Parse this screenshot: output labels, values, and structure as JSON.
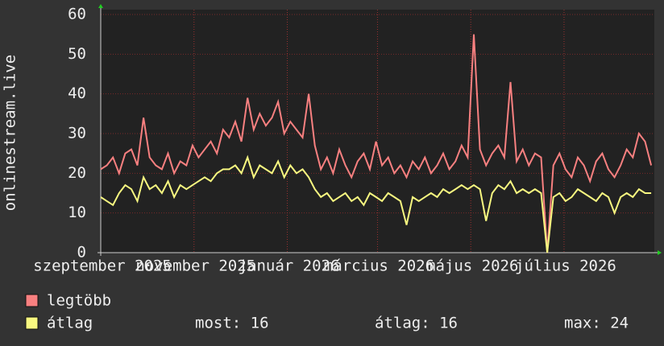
{
  "chart_data": {
    "type": "line",
    "y_label": "onlinestream.live",
    "x": [
      0,
      4,
      8,
      12,
      16,
      20,
      24,
      28,
      32,
      36,
      40,
      44,
      48,
      52,
      56,
      60,
      64,
      68,
      72,
      76,
      80,
      84,
      88,
      92,
      96,
      100,
      104,
      108,
      112,
      116,
      120,
      124,
      128,
      132,
      136,
      140,
      144,
      148,
      152,
      156,
      160,
      164,
      168,
      172,
      176,
      180,
      184,
      188,
      192,
      196,
      200,
      204,
      208,
      212,
      216,
      220,
      224,
      228,
      232,
      236,
      240,
      244,
      248,
      252,
      256,
      260,
      264,
      268,
      272,
      276,
      280,
      284,
      288,
      292,
      296,
      300,
      304,
      308,
      312,
      316,
      320,
      324,
      328,
      332,
      336,
      340,
      344,
      348,
      352,
      356,
      360
    ],
    "series": [
      {
        "name": "legtöbb",
        "color": "#f88080",
        "values": [
          21,
          22,
          24,
          20,
          25,
          26,
          22,
          34,
          24,
          22,
          21,
          25,
          20,
          23,
          22,
          27,
          24,
          26,
          28,
          25,
          31,
          29,
          33,
          28,
          39,
          31,
          35,
          32,
          34,
          38,
          30,
          33,
          31,
          29,
          40,
          27,
          21,
          24,
          20,
          26,
          22,
          19,
          23,
          25,
          21,
          28,
          22,
          24,
          20,
          22,
          19,
          23,
          21,
          24,
          20,
          22,
          25,
          21,
          23,
          27,
          24,
          55,
          26,
          22,
          25,
          27,
          24,
          43,
          23,
          26,
          22,
          25,
          24,
          0,
          22,
          25,
          21,
          19,
          24,
          22,
          18,
          23,
          25,
          21,
          19,
          22,
          26,
          24,
          30,
          28,
          22
        ]
      },
      {
        "name": "átlag",
        "color": "#f8f880",
        "values": [
          14,
          13,
          12,
          15,
          17,
          16,
          13,
          19,
          16,
          17,
          15,
          18,
          14,
          17,
          16,
          17,
          18,
          19,
          18,
          20,
          21,
          21,
          22,
          20,
          24,
          19,
          22,
          21,
          20,
          23,
          19,
          22,
          20,
          21,
          19,
          16,
          14,
          15,
          13,
          14,
          15,
          13,
          14,
          12,
          15,
          14,
          13,
          15,
          14,
          13,
          7,
          14,
          13,
          14,
          15,
          14,
          16,
          15,
          16,
          17,
          16,
          17,
          16,
          8,
          15,
          17,
          16,
          18,
          15,
          16,
          15,
          16,
          15,
          0,
          14,
          15,
          13,
          14,
          16,
          15,
          14,
          13,
          15,
          14,
          10,
          14,
          15,
          14,
          16,
          15,
          15
        ]
      }
    ],
    "xlim": [
      0,
      361
    ],
    "xticks": [
      {
        "value": 0,
        "label": "szeptember 2025"
      },
      {
        "value": 61,
        "label": "november 2025"
      },
      {
        "value": 122,
        "label": "január 2026"
      },
      {
        "value": 181,
        "label": "március 2026"
      },
      {
        "value": 242,
        "label": "május 2026"
      },
      {
        "value": 303,
        "label": "július 2026"
      }
    ],
    "ylim": [
      0,
      60
    ],
    "yticks": [
      0,
      10,
      20,
      30,
      40,
      50,
      60
    ],
    "grid": true,
    "stats": [
      "most: 16",
      "átlag: 16",
      "max: 24"
    ]
  }
}
